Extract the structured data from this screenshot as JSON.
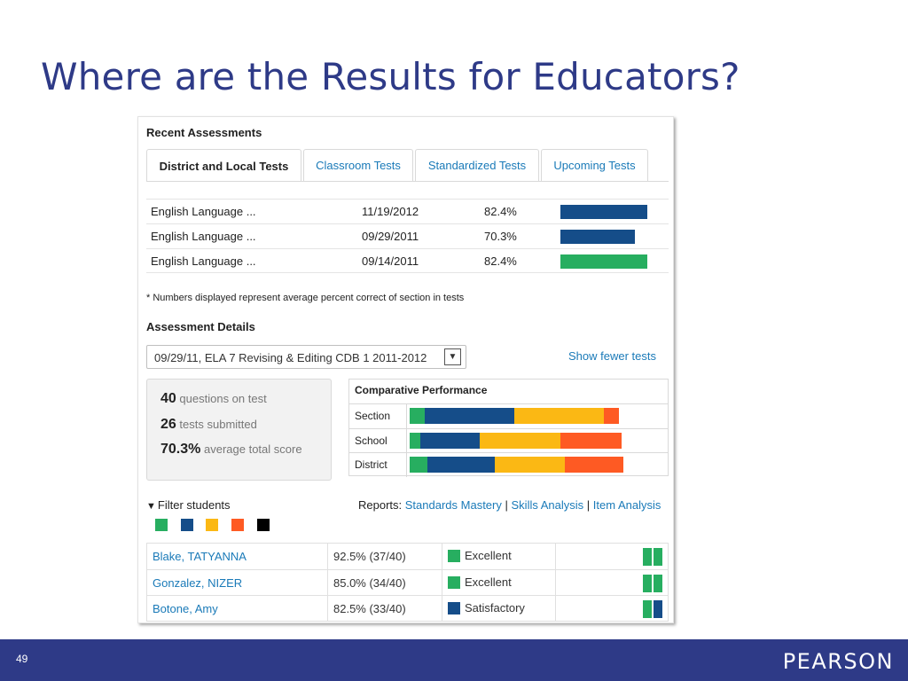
{
  "slide": {
    "title": "Where are the Results for Educators?",
    "page_number": "49",
    "brand": "PEARSON"
  },
  "recent": {
    "heading": "Recent Assessments",
    "tabs": [
      {
        "label": "District and Local Tests",
        "active": true
      },
      {
        "label": "Classroom Tests",
        "active": false
      },
      {
        "label": "Standardized Tests",
        "active": false
      },
      {
        "label": "Upcoming Tests",
        "active": false
      }
    ],
    "rows": [
      {
        "name": "English Language ...",
        "date": "11/19/2012",
        "percent": "82.4%",
        "bar_value": 82.4,
        "bar_color": "#154d89"
      },
      {
        "name": "English Language ...",
        "date": "09/29/2011",
        "percent": "70.3%",
        "bar_value": 70.3,
        "bar_color": "#154d89"
      },
      {
        "name": "English Language ...",
        "date": "09/14/2011",
        "percent": "82.4%",
        "bar_value": 82.4,
        "bar_color": "#27ae60"
      }
    ],
    "note": "* Numbers displayed represent average percent correct of section in tests"
  },
  "details": {
    "heading": "Assessment Details",
    "selected_test": "09/29/11, ELA 7 Revising & Editing CDB 1 2011-2012",
    "show_fewer": "Show fewer tests",
    "stats": [
      {
        "value": "40",
        "label": "questions on test"
      },
      {
        "value": "26",
        "label": "tests submitted"
      },
      {
        "value": "70.3%",
        "label": "average total score"
      }
    ]
  },
  "comparative": {
    "title": "Comparative Performance",
    "rows": [
      {
        "label": "Section",
        "segments": [
          7,
          41,
          41,
          7
        ]
      },
      {
        "label": "School",
        "segments": [
          5,
          27,
          37,
          28
        ]
      },
      {
        "label": "District",
        "segments": [
          8,
          31,
          32,
          27
        ]
      }
    ]
  },
  "filter": {
    "label": "Filter students",
    "reports_label": "Reports:",
    "report_links": [
      "Standards Mastery",
      "Skills Analysis",
      "Item Analysis"
    ],
    "separator": "|"
  },
  "colors": {
    "excellent": "#27ae60",
    "satisfactory": "#154d89",
    "fair": "#fbb814",
    "poor": "#fe5a23",
    "none": "#000000",
    "link": "#1a7ab8",
    "title": "#2e3a87"
  },
  "students": [
    {
      "name": "Blake, TATYANNA",
      "score": "92.5% (37/40)",
      "level": "Excellent",
      "level_color": "#27ae60",
      "mini": [
        "#27ae60",
        "#27ae60"
      ]
    },
    {
      "name": "Gonzalez, NIZER",
      "score": "85.0% (34/40)",
      "level": "Excellent",
      "level_color": "#27ae60",
      "mini": [
        "#27ae60",
        "#27ae60"
      ]
    },
    {
      "name": "Botone, Amy",
      "score": "82.5% (33/40)",
      "level": "Satisfactory",
      "level_color": "#154d89",
      "mini": [
        "#27ae60",
        "#154d89"
      ]
    }
  ]
}
